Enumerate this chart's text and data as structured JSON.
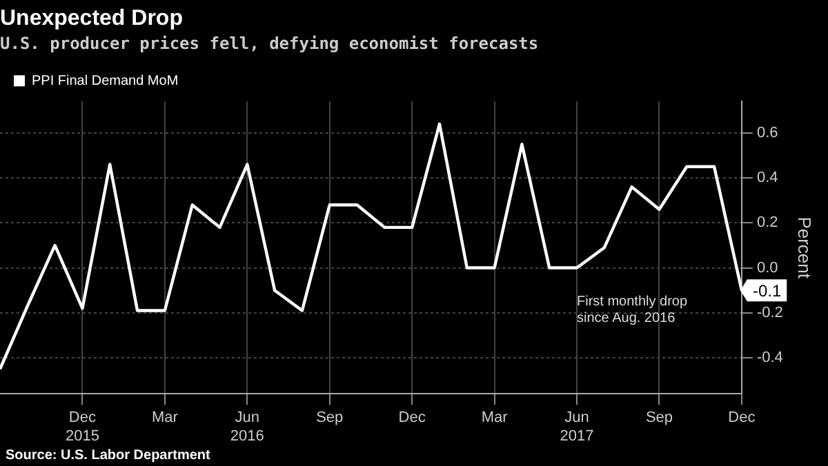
{
  "chart_data": {
    "type": "line",
    "title": "Unexpected Drop",
    "subtitle": "U.S. producer prices fell, defying economist forecasts",
    "ylabel": "Percent",
    "x": [
      "2015-09",
      "2015-10",
      "2015-11",
      "2015-12",
      "2016-01",
      "2016-02",
      "2016-03",
      "2016-04",
      "2016-05",
      "2016-06",
      "2016-07",
      "2016-08",
      "2016-09",
      "2016-10",
      "2016-11",
      "2016-12",
      "2017-01",
      "2017-02",
      "2017-03",
      "2017-04",
      "2017-05",
      "2017-06",
      "2017-07",
      "2017-08",
      "2017-09",
      "2017-10",
      "2017-11",
      "2017-12"
    ],
    "series": [
      {
        "name": "PPI Final Demand MoM",
        "color": "#ffffff",
        "values": [
          -0.45,
          -0.17,
          0.1,
          -0.18,
          0.46,
          -0.19,
          -0.19,
          0.28,
          0.18,
          0.46,
          -0.1,
          -0.19,
          0.28,
          0.28,
          0.18,
          0.18,
          0.64,
          0.0,
          0.0,
          0.55,
          0.0,
          0.0,
          0.09,
          0.36,
          0.26,
          0.45,
          0.45,
          -0.1
        ],
        "value_labels": [
          null,
          null,
          null,
          null,
          null,
          null,
          null,
          null,
          null,
          null,
          null,
          null,
          null,
          null,
          null,
          null,
          null,
          null,
          null,
          null,
          null,
          null,
          null,
          null,
          null,
          null,
          null,
          "-0.1"
        ]
      }
    ],
    "xlim": [
      "2015-09",
      "2017-12"
    ],
    "xticks": [
      {
        "value": "2015-12",
        "label": "Dec\n2015"
      },
      {
        "value": "2016-03",
        "label": "Mar"
      },
      {
        "value": "2016-06",
        "label": "Jun\n2016"
      },
      {
        "value": "2016-09",
        "label": "Sep"
      },
      {
        "value": "2016-12",
        "label": "Dec"
      },
      {
        "value": "2017-03",
        "label": "Mar"
      },
      {
        "value": "2017-06",
        "label": "Jun\n2017"
      },
      {
        "value": "2017-09",
        "label": "Sep"
      },
      {
        "value": "2017-12",
        "label": "Dec"
      }
    ],
    "ylim": [
      -0.56,
      0.74
    ],
    "yticks": [
      -0.4,
      -0.2,
      {
        "value": 0,
        "label": "0.0"
      },
      0.2,
      0.4,
      0.6
    ],
    "grid": true,
    "legend": "top left",
    "marker": "none",
    "line_style": "solid",
    "annotations": [
      "First monthly drop\nsince Aug. 2016",
      "Source: U.S. Labor Department"
    ]
  }
}
